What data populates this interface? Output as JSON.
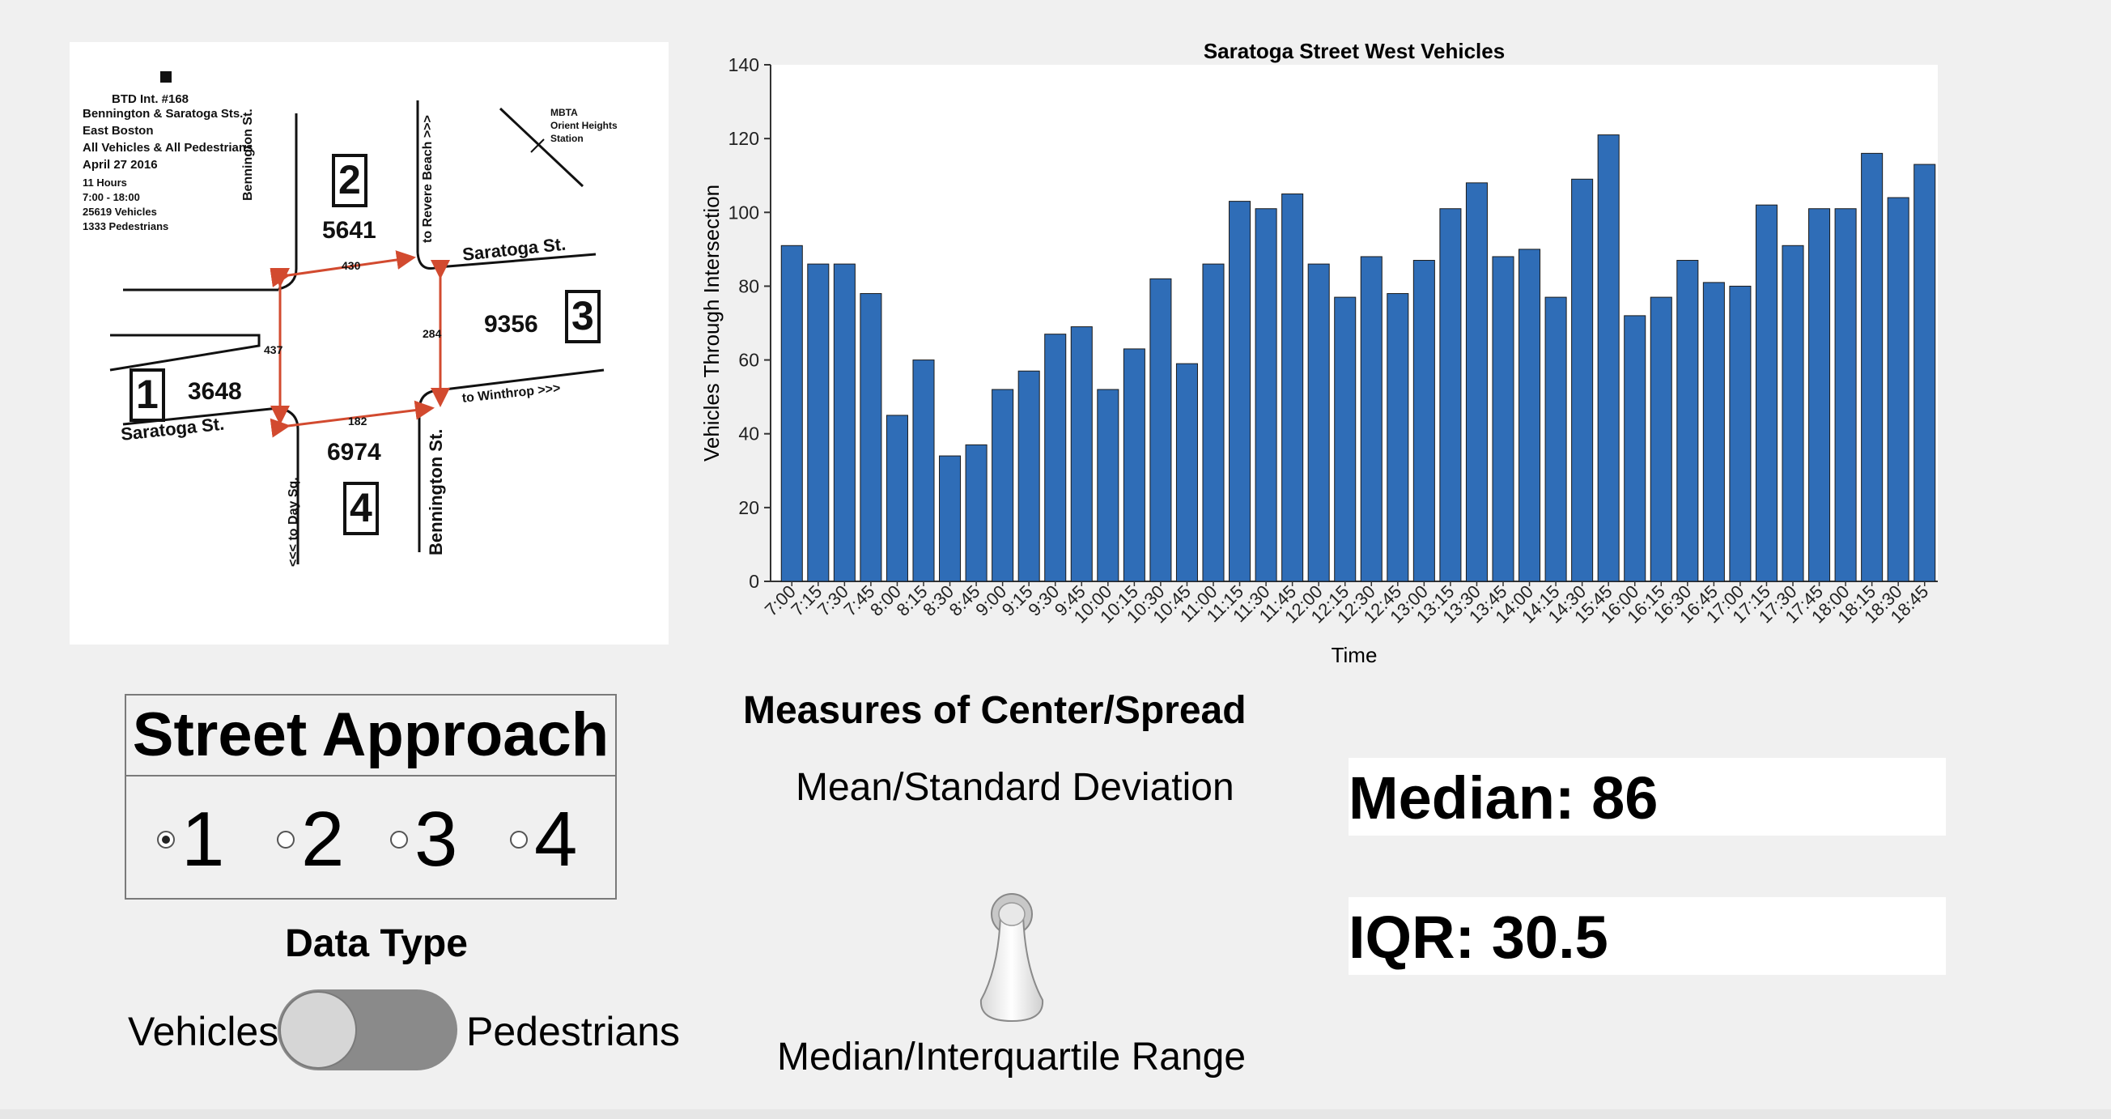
{
  "map": {
    "notes": [
      "BTD Int. #168",
      "Bennington & Saratoga Sts.",
      "East Boston",
      "All Vehicles & All Pedestrians",
      "April 27 2016",
      "11 Hours",
      "7:00 - 18:00",
      "25619 Vehicles",
      "1333 Pedestrians"
    ],
    "mbta_label": [
      "MBTA",
      "Orient Heights",
      "Station"
    ],
    "street_labels": {
      "bennington_north": "Bennington St.",
      "revere_beach": "to Revere Beach >>>",
      "saratoga_east": "Saratoga St.",
      "saratoga_west": "Saratoga St.",
      "winthrop": "to Winthrop >>>",
      "day_sq": "<<< to Day Sq.",
      "bennington_south": "Bennington St."
    },
    "approaches": [
      {
        "number": "1",
        "count": "3648"
      },
      {
        "number": "2",
        "count": "5641"
      },
      {
        "number": "3",
        "count": "9356"
      },
      {
        "number": "4",
        "count": "6974"
      }
    ],
    "crosswalk_counts": {
      "north": "430",
      "west": "437",
      "east": "284",
      "south": "182"
    }
  },
  "chart_data": {
    "type": "bar",
    "title": "Saratoga Street West Vehicles",
    "xlabel": "Time",
    "ylabel": "Vehicles Through Intersection",
    "ylim": [
      0,
      140
    ],
    "yticks": [
      0,
      20,
      40,
      60,
      80,
      100,
      120,
      140
    ],
    "bar_color": "#2f6db7",
    "categories": [
      "7:00",
      "7:15",
      "7:30",
      "7:45",
      "8:00",
      "8:15",
      "8:30",
      "8:45",
      "9:00",
      "9:15",
      "9:30",
      "9:45",
      "10:00",
      "10:15",
      "10:30",
      "10:45",
      "11:00",
      "11:15",
      "11:30",
      "11:45",
      "12:00",
      "12:15",
      "12:30",
      "12:45",
      "13:00",
      "13:15",
      "13:30",
      "13:45",
      "14:00",
      "14:15",
      "14:30",
      "15:45",
      "16:00",
      "16:15",
      "16:30",
      "16:45",
      "17:00",
      "17:15",
      "17:30",
      "17:45",
      "18:00",
      "18:15",
      "18:30",
      "18:45"
    ],
    "values": [
      91,
      86,
      86,
      78,
      45,
      60,
      34,
      37,
      52,
      57,
      67,
      69,
      52,
      63,
      82,
      59,
      86,
      103,
      101,
      105,
      86,
      77,
      88,
      78,
      87,
      101,
      108,
      88,
      90,
      77,
      109,
      121,
      72,
      77,
      87,
      81,
      80,
      102,
      91,
      101,
      101,
      116,
      104,
      113
    ]
  },
  "controls": {
    "street_approach_title": "Street Approach",
    "radio_options": [
      "1",
      "2",
      "3",
      "4"
    ],
    "selected_option": "1",
    "data_type_title": "Data Type",
    "toggle_left_label": "Vehicles",
    "toggle_right_label": "Pedestrians",
    "toggle_state": "Vehicles",
    "measures_title": "Measures of Center/Spread",
    "mean_label": "Mean/Standard Deviation",
    "median_label": "Median/Interquartile Range",
    "switch_state": "Median/Interquartile Range"
  },
  "stats": {
    "median_text": "Median: 86",
    "iqr_text": "IQR: 30.5"
  }
}
